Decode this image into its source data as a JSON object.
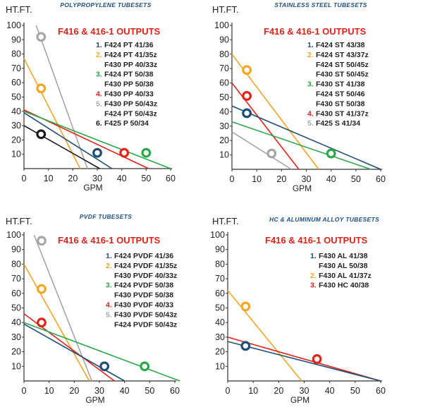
{
  "chart_data": [
    {
      "type": "line",
      "title": "POLYPROPYLENE TUBESETS",
      "subtitle": "F416 & 416-1 OUTPUTS",
      "ylabel": "HT.FT.",
      "xlabel": "GPM",
      "xlim": [
        0,
        60
      ],
      "ylim": [
        0,
        100
      ],
      "xticks": [
        0,
        10,
        20,
        30,
        40,
        50,
        60
      ],
      "yticks": [
        10,
        20,
        30,
        40,
        50,
        60,
        70,
        80,
        90,
        100
      ],
      "grid": false,
      "legend": [
        {
          "num": "1.",
          "color": "#1f4e79",
          "lines": [
            "F424 PT 41/36"
          ]
        },
        {
          "num": "2.",
          "color": "#f5a623",
          "lines": [
            "F424 PT 41/35z",
            "F430 PP 40/33z"
          ]
        },
        {
          "num": "3.",
          "color": "#2ca84a",
          "lines": [
            "F424 PT 50/38",
            "F430 PP 50/38"
          ]
        },
        {
          "num": "4.",
          "color": "#e2231a",
          "lines": [
            "F430 PP 40/33"
          ]
        },
        {
          "num": "5.",
          "color": "#a6a6a6",
          "lines": [
            "F430 PP 50/43z",
            "F424 PT 50/43z"
          ]
        },
        {
          "num": "6.",
          "color": "#1a1a1a",
          "lines": [
            "F425 P 50/34"
          ]
        }
      ],
      "series": [
        {
          "color": "#a6a6a6",
          "points": [
            [
              5,
              100
            ],
            [
              26,
              0
            ]
          ],
          "marker": [
            7,
            92
          ]
        },
        {
          "color": "#f5a623",
          "points": [
            [
              0,
              77
            ],
            [
              23,
              0
            ]
          ],
          "marker": [
            7,
            56
          ]
        },
        {
          "color": "#e2231a",
          "points": [
            [
              0,
              41
            ],
            [
              51,
              0
            ]
          ],
          "marker": [
            41,
            11
          ]
        },
        {
          "color": "#2ca84a",
          "points": [
            [
              0,
              40
            ],
            [
              60,
              0
            ]
          ],
          "marker": [
            50,
            11
          ]
        },
        {
          "color": "#1f4e79",
          "points": [
            [
              0,
              39
            ],
            [
              36,
              0
            ]
          ],
          "marker": [
            30,
            11
          ]
        },
        {
          "color": "#1a1a1a",
          "points": [
            [
              0,
              30
            ],
            [
              31,
              0
            ]
          ],
          "marker": [
            7,
            24
          ]
        }
      ]
    },
    {
      "type": "line",
      "title": "STAINLESS STEEL TUBESETS",
      "subtitle": "F416 & 416-1 OUTPUTS",
      "ylabel": "HT.FT.",
      "xlabel": "GPM",
      "xlim": [
        0,
        60
      ],
      "ylim": [
        0,
        100
      ],
      "xticks": [
        0,
        10,
        20,
        30,
        40,
        50,
        60
      ],
      "yticks": [
        10,
        20,
        30,
        40,
        50,
        60,
        70,
        80,
        90,
        100
      ],
      "grid": false,
      "legend": [
        {
          "num": "1.",
          "color": "#1f4e79",
          "lines": [
            "F424 ST 43/38"
          ]
        },
        {
          "num": "2.",
          "color": "#f5a623",
          "lines": [
            "F424 ST 43/37z",
            "F424 ST 50/45z",
            "F430 ST 50/45z"
          ]
        },
        {
          "num": "3.",
          "color": "#2ca84a",
          "lines": [
            "F430 ST 41/38",
            "F424 ST 50/46",
            "F430 ST 50/38"
          ]
        },
        {
          "num": "4.",
          "color": "#e2231a",
          "lines": [
            "F430 ST 41/37z"
          ]
        },
        {
          "num": "5.",
          "color": "#a6a6a6",
          "lines": [
            "F425 S 41/34"
          ]
        }
      ],
      "series": [
        {
          "color": "#f5a623",
          "points": [
            [
              0,
              80
            ],
            [
              35,
              0
            ]
          ],
          "marker": [
            6,
            69
          ]
        },
        {
          "color": "#e2231a",
          "points": [
            [
              0,
              60
            ],
            [
              27,
              0
            ]
          ],
          "marker": [
            6,
            51
          ]
        },
        {
          "color": "#1f4e79",
          "points": [
            [
              0,
              44
            ],
            [
              60,
              0
            ]
          ],
          "marker": [
            6,
            39
          ]
        },
        {
          "color": "#2ca84a",
          "points": [
            [
              0,
              33
            ],
            [
              56,
              0
            ]
          ],
          "marker": [
            40,
            11
          ]
        },
        {
          "color": "#a6a6a6",
          "points": [
            [
              0,
              26
            ],
            [
              24,
              0
            ]
          ],
          "marker": [
            16,
            11
          ]
        }
      ]
    },
    {
      "type": "line",
      "title": "PVDF TUBESETS",
      "subtitle": "F416 & 416-1 OUTPUTS",
      "ylabel": "HT.FT.",
      "xlabel": "GPM",
      "xlim": [
        0,
        60
      ],
      "ylim": [
        0,
        100
      ],
      "xticks": [
        0,
        10,
        20,
        30,
        40,
        50,
        60
      ],
      "yticks": [
        10,
        20,
        30,
        40,
        50,
        60,
        70,
        80,
        90,
        100
      ],
      "grid": false,
      "legend": [
        {
          "num": "1.",
          "color": "#1f4e79",
          "lines": [
            "F424 PVDF 41/36"
          ]
        },
        {
          "num": "2.",
          "color": "#f5a623",
          "lines": [
            "F424 PVDF 41/35z",
            "F430 PVDF 40/33z"
          ]
        },
        {
          "num": "3.",
          "color": "#2ca84a",
          "lines": [
            "F424 PVDF 50/38",
            "F430 PVDF 50/38"
          ]
        },
        {
          "num": "4.",
          "color": "#e2231a",
          "lines": [
            "F430 PVDF 40/33"
          ]
        },
        {
          "num": "5.",
          "color": "#a6a6a6",
          "lines": [
            "F430 PVDF 50/43z",
            "F424 PVDF 50/43z"
          ]
        }
      ],
      "series": [
        {
          "color": "#a6a6a6",
          "points": [
            [
              4,
              100
            ],
            [
              27,
              0
            ]
          ],
          "marker": [
            7,
            96
          ]
        },
        {
          "color": "#f5a623",
          "points": [
            [
              0,
              80
            ],
            [
              26,
              0
            ]
          ],
          "marker": [
            7,
            63
          ]
        },
        {
          "color": "#e2231a",
          "points": [
            [
              0,
              46
            ],
            [
              36,
              0
            ]
          ],
          "marker": [
            7,
            40
          ]
        },
        {
          "color": "#2ca84a",
          "points": [
            [
              0,
              40
            ],
            [
              62,
              0
            ]
          ],
          "marker": [
            48,
            10
          ]
        },
        {
          "color": "#1f4e79",
          "points": [
            [
              0,
              39
            ],
            [
              40,
              0
            ]
          ],
          "marker": [
            32,
            10
          ]
        }
      ]
    },
    {
      "type": "line",
      "title": "HC & ALUMINUM ALLOY TUBESETS",
      "subtitle": "F416 & 416-1 OUTPUTS",
      "ylabel": "HT.FT.",
      "xlabel": "GPM",
      "xlim": [
        0,
        60
      ],
      "ylim": [
        0,
        100
      ],
      "xticks": [
        0,
        10,
        20,
        30,
        40,
        50,
        60
      ],
      "yticks": [
        10,
        20,
        30,
        40,
        50,
        60,
        70,
        80,
        90,
        100
      ],
      "grid": false,
      "legend": [
        {
          "num": "1.",
          "color": "#1f4e79",
          "lines": [
            "F430 AL 41/38",
            "F430 AL 50/38"
          ]
        },
        {
          "num": "2.",
          "color": "#f5a623",
          "lines": [
            "F430 AL  41/37z"
          ]
        },
        {
          "num": "3.",
          "color": "#e2231a",
          "lines": [
            "F430 HC  40/38"
          ]
        }
      ],
      "series": [
        {
          "color": "#f5a623",
          "points": [
            [
              0,
              62
            ],
            [
              29,
              0
            ]
          ],
          "marker": [
            7,
            51
          ]
        },
        {
          "color": "#e2231a",
          "points": [
            [
              0,
              30
            ],
            [
              60,
              0
            ]
          ],
          "marker": [
            35,
            15
          ]
        },
        {
          "color": "#1f4e79",
          "points": [
            [
              0,
              27
            ],
            [
              60,
              0
            ]
          ],
          "marker": [
            7,
            24
          ]
        }
      ]
    }
  ]
}
